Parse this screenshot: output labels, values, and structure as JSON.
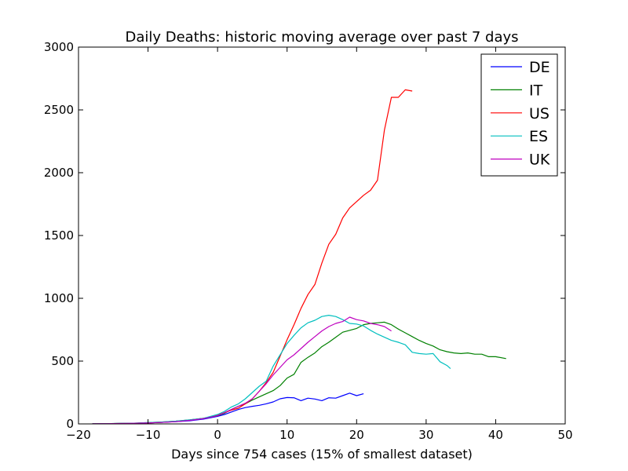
{
  "chart_data": {
    "type": "line",
    "title": "Daily Deaths: historic moving average over past 7 days",
    "xlabel": "Days since 754 cases (15% of smallest dataset)",
    "ylabel": "",
    "xlim": [
      -20,
      50
    ],
    "ylim": [
      0,
      3000
    ],
    "xticks": [
      "−20",
      "−10",
      "0",
      "10",
      "20",
      "30",
      "40",
      "50"
    ],
    "yticks": [
      "0",
      "500",
      "1000",
      "1500",
      "2000",
      "2500",
      "3000"
    ],
    "grid": false,
    "legend_position": "top-right",
    "series": [
      {
        "name": "DE",
        "color": "#0000ff",
        "points": [
          [
            -18,
            1
          ],
          [
            -16,
            2
          ],
          [
            -14,
            3
          ],
          [
            -12,
            5
          ],
          [
            -10,
            8
          ],
          [
            -8,
            12
          ],
          [
            -6,
            18
          ],
          [
            -4,
            25
          ],
          [
            -2,
            38
          ],
          [
            0,
            60
          ],
          [
            1,
            75
          ],
          [
            2,
            95
          ],
          [
            3,
            115
          ],
          [
            4,
            130
          ],
          [
            5,
            140
          ],
          [
            6,
            148
          ],
          [
            7,
            160
          ],
          [
            8,
            175
          ],
          [
            9,
            200
          ],
          [
            10,
            210
          ],
          [
            11,
            208
          ],
          [
            12,
            185
          ],
          [
            13,
            205
          ],
          [
            14,
            198
          ],
          [
            15,
            185
          ],
          [
            16,
            208
          ],
          [
            17,
            205
          ],
          [
            18,
            225
          ],
          [
            19,
            245
          ],
          [
            20,
            225
          ],
          [
            21,
            240
          ]
        ]
      },
      {
        "name": "IT",
        "color": "#008000",
        "points": [
          [
            -18,
            1
          ],
          [
            -16,
            2
          ],
          [
            -14,
            4
          ],
          [
            -12,
            6
          ],
          [
            -10,
            10
          ],
          [
            -8,
            15
          ],
          [
            -6,
            22
          ],
          [
            -4,
            32
          ],
          [
            -2,
            45
          ],
          [
            0,
            65
          ],
          [
            1,
            85
          ],
          [
            2,
            115
          ],
          [
            3,
            140
          ],
          [
            4,
            160
          ],
          [
            5,
            190
          ],
          [
            6,
            215
          ],
          [
            7,
            240
          ],
          [
            8,
            265
          ],
          [
            9,
            305
          ],
          [
            10,
            365
          ],
          [
            11,
            395
          ],
          [
            12,
            490
          ],
          [
            13,
            530
          ],
          [
            14,
            565
          ],
          [
            15,
            615
          ],
          [
            16,
            650
          ],
          [
            17,
            690
          ],
          [
            18,
            730
          ],
          [
            19,
            745
          ],
          [
            20,
            760
          ],
          [
            21,
            790
          ],
          [
            22,
            800
          ],
          [
            23,
            805
          ],
          [
            24,
            810
          ],
          [
            25,
            790
          ],
          [
            26,
            755
          ],
          [
            27,
            725
          ],
          [
            28,
            695
          ],
          [
            29,
            665
          ],
          [
            30,
            640
          ],
          [
            31,
            620
          ],
          [
            32,
            590
          ],
          [
            33,
            575
          ],
          [
            34,
            565
          ],
          [
            35,
            560
          ],
          [
            36,
            565
          ],
          [
            37,
            555
          ],
          [
            38,
            555
          ],
          [
            39,
            535
          ],
          [
            40,
            535
          ],
          [
            41.5,
            520
          ]
        ]
      },
      {
        "name": "US",
        "color": "#ff0000",
        "points": [
          [
            -18,
            1
          ],
          [
            -16,
            2
          ],
          [
            -14,
            3
          ],
          [
            -12,
            5
          ],
          [
            -10,
            8
          ],
          [
            -8,
            12
          ],
          [
            -6,
            20
          ],
          [
            -4,
            30
          ],
          [
            -2,
            45
          ],
          [
            0,
            70
          ],
          [
            2,
            110
          ],
          [
            3,
            125
          ],
          [
            4,
            160
          ],
          [
            5,
            200
          ],
          [
            6,
            260
          ],
          [
            7,
            330
          ],
          [
            8,
            410
          ],
          [
            9,
            540
          ],
          [
            10,
            670
          ],
          [
            11,
            790
          ],
          [
            12,
            920
          ],
          [
            13,
            1030
          ],
          [
            14,
            1110
          ],
          [
            15,
            1280
          ],
          [
            16,
            1430
          ],
          [
            17,
            1510
          ],
          [
            18,
            1640
          ],
          [
            19,
            1720
          ],
          [
            20,
            1770
          ],
          [
            21,
            1820
          ],
          [
            22,
            1860
          ],
          [
            23,
            1940
          ],
          [
            24,
            2340
          ],
          [
            25,
            2600
          ],
          [
            26,
            2600
          ],
          [
            27,
            2660
          ],
          [
            28,
            2650
          ]
        ]
      },
      {
        "name": "ES",
        "color": "#00bfbf",
        "points": [
          [
            -18,
            1
          ],
          [
            -16,
            2
          ],
          [
            -14,
            4
          ],
          [
            -12,
            6
          ],
          [
            -10,
            10
          ],
          [
            -8,
            15
          ],
          [
            -6,
            22
          ],
          [
            -4,
            32
          ],
          [
            -2,
            45
          ],
          [
            0,
            75
          ],
          [
            1,
            100
          ],
          [
            2,
            135
          ],
          [
            3,
            160
          ],
          [
            4,
            200
          ],
          [
            5,
            250
          ],
          [
            6,
            300
          ],
          [
            7,
            340
          ],
          [
            8,
            460
          ],
          [
            9,
            550
          ],
          [
            10,
            640
          ],
          [
            11,
            705
          ],
          [
            12,
            765
          ],
          [
            13,
            805
          ],
          [
            14,
            825
          ],
          [
            15,
            855
          ],
          [
            16,
            865
          ],
          [
            17,
            855
          ],
          [
            18,
            830
          ],
          [
            19,
            800
          ],
          [
            20,
            795
          ],
          [
            21,
            780
          ],
          [
            22,
            745
          ],
          [
            23,
            715
          ],
          [
            24,
            690
          ],
          [
            25,
            665
          ],
          [
            26,
            650
          ],
          [
            27,
            630
          ],
          [
            28,
            570
          ],
          [
            29,
            560
          ],
          [
            30,
            555
          ],
          [
            31,
            560
          ],
          [
            32,
            495
          ],
          [
            33,
            465
          ],
          [
            33.5,
            440
          ]
        ]
      },
      {
        "name": "UK",
        "color": "#bf00bf",
        "points": [
          [
            -18,
            1
          ],
          [
            -16,
            2
          ],
          [
            -14,
            3
          ],
          [
            -12,
            5
          ],
          [
            -10,
            8
          ],
          [
            -8,
            12
          ],
          [
            -6,
            18
          ],
          [
            -4,
            28
          ],
          [
            -2,
            42
          ],
          [
            0,
            65
          ],
          [
            1,
            90
          ],
          [
            2,
            115
          ],
          [
            3,
            140
          ],
          [
            4,
            165
          ],
          [
            5,
            200
          ],
          [
            6,
            260
          ],
          [
            7,
            320
          ],
          [
            8,
            390
          ],
          [
            9,
            450
          ],
          [
            10,
            510
          ],
          [
            11,
            550
          ],
          [
            12,
            600
          ],
          [
            13,
            650
          ],
          [
            14,
            695
          ],
          [
            15,
            740
          ],
          [
            16,
            775
          ],
          [
            17,
            800
          ],
          [
            18,
            815
          ],
          [
            19,
            850
          ],
          [
            20,
            830
          ],
          [
            21,
            820
          ],
          [
            22,
            800
          ],
          [
            23,
            790
          ],
          [
            24,
            775
          ],
          [
            25,
            740
          ]
        ]
      }
    ]
  }
}
